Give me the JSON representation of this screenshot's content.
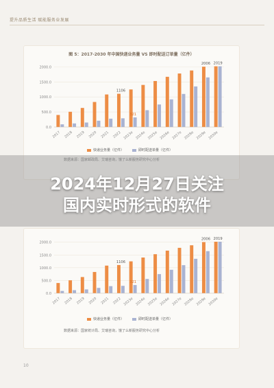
{
  "page": {
    "header": "提升品质生活 赋能服务业发展",
    "page_number": "10"
  },
  "overlay": {
    "line1": "2024年12月27日关注",
    "line2": "国内实时形式的软件"
  },
  "colors": {
    "series_a": "#ed8d45",
    "series_b": "#a9b3d2",
    "annotation": "#e07020"
  },
  "chart_data": [
    {
      "type": "bar",
      "title": "图 5：2017-2030 年中国快递业务量 VS 即时配送订单量（亿件）",
      "categories": [
        "2017",
        "2018",
        "2019",
        "2020",
        "2021",
        "2022",
        "2023e",
        "2024e",
        "2025e",
        "2026e",
        "2027e",
        "2028e",
        "2029e",
        "2030e"
      ],
      "series": [
        {
          "name": "快递业务量（亿件）",
          "values": [
            401,
            507,
            635,
            833,
            1083,
            1106,
            1250,
            1400,
            1530,
            1670,
            1780,
            1880,
            2006,
            2019
          ]
        },
        {
          "name": "即时配送单量（亿件）",
          "values": [
            90,
            120,
            150,
            210,
            278,
            290,
            321,
            560,
            750,
            920,
            1100,
            1350,
            1650,
            2019
          ]
        }
      ],
      "yticks": [
        0,
        500,
        1000,
        1500,
        2000
      ],
      "ylim": [
        0,
        2100
      ],
      "annotations": [
        {
          "category": "2022",
          "value": 1106,
          "label": "1106"
        },
        {
          "category": "2023e",
          "value": 321,
          "label": "321"
        },
        {
          "category": "2029e",
          "value": 2006,
          "label": "2006"
        },
        {
          "category": "2030e",
          "value": 2019,
          "label": "2019"
        }
      ],
      "source": "数据来源：国家邮政局、艾瑞咨询，饿了么新服务研究中心分析",
      "legend": "bottom"
    },
    {
      "type": "bar",
      "title": "",
      "categories": [
        "2017",
        "2018",
        "2019",
        "2020",
        "2021",
        "2022",
        "2023e",
        "2024e",
        "2025e",
        "2026e",
        "2027e",
        "2028e",
        "2029e",
        "2030e"
      ],
      "series": [
        {
          "name": "快递业务量（亿件）",
          "values": [
            401,
            507,
            635,
            833,
            1083,
            1106,
            1250,
            1400,
            1530,
            1670,
            1780,
            1880,
            2006,
            2019
          ]
        },
        {
          "name": "即时配送单量（亿件）",
          "values": [
            90,
            120,
            150,
            210,
            278,
            290,
            321,
            560,
            750,
            920,
            1100,
            1350,
            1650,
            2019
          ]
        }
      ],
      "yticks": [
        0,
        500,
        1000,
        1500,
        2000
      ],
      "ylim": [
        0,
        2100
      ],
      "annotations": [
        {
          "category": "2022",
          "value": 1106,
          "label": "1106"
        },
        {
          "category": "2023e",
          "value": 321,
          "label": "321"
        },
        {
          "category": "2029e",
          "value": 2006,
          "label": "2006"
        },
        {
          "category": "2030e",
          "value": 2019,
          "label": "2019"
        }
      ],
      "source": "数据来源：国家统计局、艾瑞咨询，饿了么新服务研究中心分析",
      "legend": "bottom"
    }
  ]
}
